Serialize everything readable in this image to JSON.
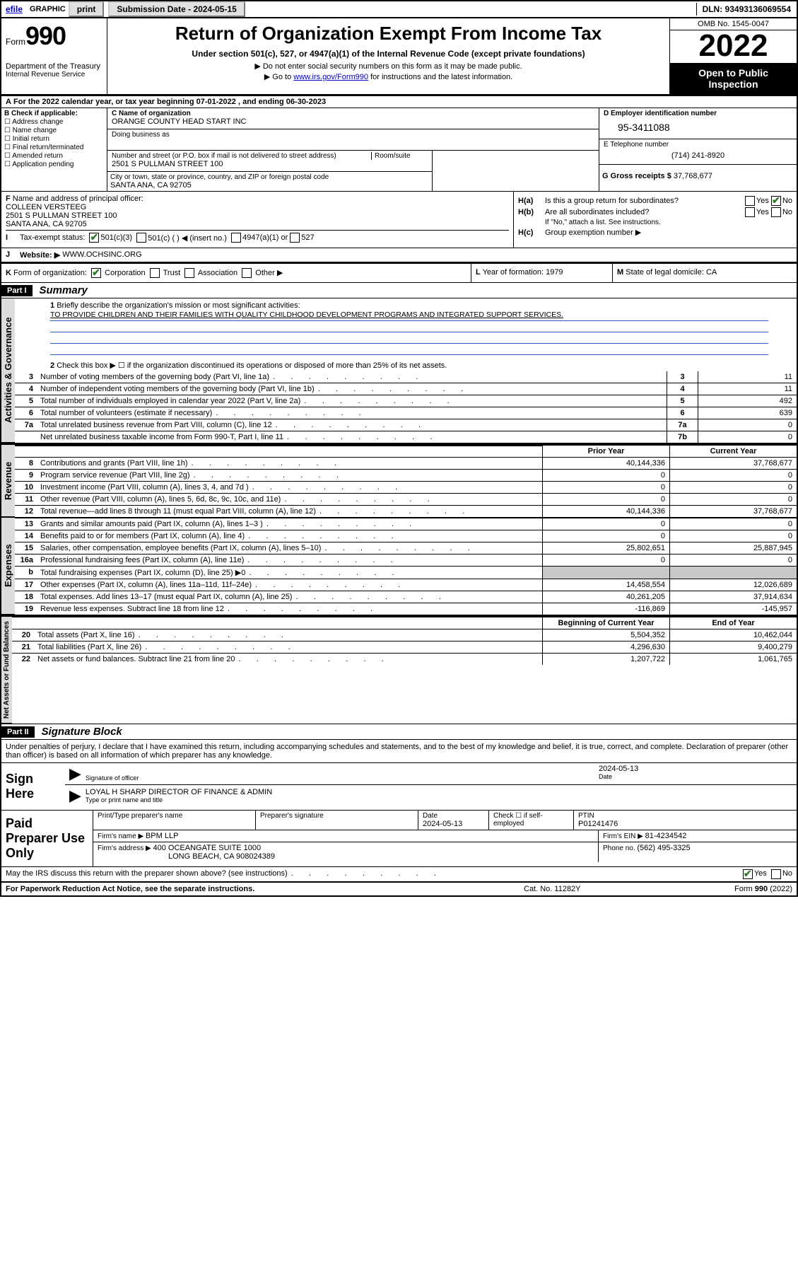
{
  "topbar": {
    "efile_link": "efile",
    "graphic": "GRAPHIC",
    "print": "print",
    "submission_label": "Submission Date - 2024-05-15",
    "dln": "DLN: 93493136069554"
  },
  "header": {
    "form_word": "Form",
    "form_number": "990",
    "dept": "Department of the Treasury",
    "irs": "Internal Revenue Service",
    "title": "Return of Organization Exempt From Income Tax",
    "sub1": "Under section 501(c), 527, or 4947(a)(1) of the Internal Revenue Code (except private foundations)",
    "note1": "▶ Do not enter social security numbers on this form as it may be made public.",
    "note2_pre": "▶ Go to ",
    "note2_link": "www.irs.gov/Form990",
    "note2_post": " for instructions and the latest information.",
    "omb": "OMB No. 1545-0047",
    "year": "2022",
    "open1": "Open to Public",
    "open2": "Inspection"
  },
  "lineA": {
    "label": "A",
    "text": "For the 2022 calendar year, or tax year beginning ",
    "begin": "07-01-2022",
    "mid": " , and ending ",
    "end": "06-30-2023"
  },
  "colB": {
    "label": "B Check if applicable:",
    "opts": [
      "Address change",
      "Name change",
      "Initial return",
      "Final return/terminated",
      "Amended return",
      "Application pending"
    ]
  },
  "colC": {
    "name_label": "C Name of organization",
    "name": "ORANGE COUNTY HEAD START INC",
    "dba_label": "Doing business as",
    "dba": "",
    "street_label": "Number and street (or P.O. box if mail is not delivered to street address)",
    "room_label": "Room/suite",
    "street": "2501 S PULLMAN STREET 100",
    "city_label": "City or town, state or province, country, and ZIP or foreign postal code",
    "city": "SANTA ANA, CA  92705"
  },
  "colD": {
    "ein_label": "D Employer identification number",
    "ein": "95-3411088",
    "phone_label": "E Telephone number",
    "phone": "(714) 241-8920",
    "gross_label": "G Gross receipts $ ",
    "gross": "37,768,677"
  },
  "rowF": {
    "label": "F",
    "text": "Name and address of principal officer:",
    "name": "COLLEEN VERSTEEG",
    "addr1": "2501 S PULLMAN STREET 100",
    "addr2": "SANTA ANA, CA  92705"
  },
  "rowH": {
    "ha_label": "H(a)",
    "ha_text": "Is this a group return for subordinates?",
    "hb_label": "H(b)",
    "hb_text": "Are all subordinates included?",
    "hb_note": "If \"No,\" attach a list. See instructions.",
    "hc_label": "H(c)",
    "hc_text": "Group exemption number ▶",
    "yes": "Yes",
    "no": "No"
  },
  "rowI": {
    "label": "I",
    "text": "Tax-exempt status:",
    "o1": "501(c)(3)",
    "o2": "501(c) (   ) ◀ (insert no.)",
    "o3": "4947(a)(1) or",
    "o4": "527"
  },
  "rowJ": {
    "label": "J",
    "text": "Website: ▶",
    "val": "WWW.OCHSINC.ORG"
  },
  "rowK": {
    "label": "K",
    "text": "Form of organization:",
    "o1": "Corporation",
    "o2": "Trust",
    "o3": "Association",
    "o4": "Other ▶",
    "l_label": "L",
    "l_text": "Year of formation: ",
    "l_val": "1979",
    "m_label": "M",
    "m_text": "State of legal domicile: ",
    "m_val": "CA"
  },
  "partI": {
    "part": "Part I",
    "title": "Summary",
    "line1_n": "1",
    "line1": "Briefly describe the organization's mission or most significant activities:",
    "mission": "TO PROVIDE CHILDREN AND THEIR FAMILIES WITH QUALITY CHILDHOOD DEVELOPMENT PROGRAMS AND INTEGRATED SUPPORT SERVICES.",
    "line2_n": "2",
    "line2": "Check this box ▶ ☐ if the organization discontinued its operations or disposed of more than 25% of its net assets.",
    "lines_gov": [
      {
        "n": "3",
        "txt": "Number of voting members of the governing body (Part VI, line 1a)",
        "box": "3",
        "val": "11"
      },
      {
        "n": "4",
        "txt": "Number of independent voting members of the governing body (Part VI, line 1b)",
        "box": "4",
        "val": "11"
      },
      {
        "n": "5",
        "txt": "Total number of individuals employed in calendar year 2022 (Part V, line 2a)",
        "box": "5",
        "val": "492"
      },
      {
        "n": "6",
        "txt": "Total number of volunteers (estimate if necessary)",
        "box": "6",
        "val": "639"
      },
      {
        "n": "7a",
        "txt": "Total unrelated business revenue from Part VIII, column (C), line 12",
        "box": "7a",
        "val": "0"
      },
      {
        "n": "",
        "txt": "Net unrelated business taxable income from Form 990-T, Part I, line 11",
        "box": "7b",
        "val": "0"
      }
    ],
    "vtab_gov": "Activities & Governance",
    "vtab_rev": "Revenue",
    "vtab_exp": "Expenses",
    "vtab_net": "Net Assets or Fund Balances",
    "col_prior": "Prior Year",
    "col_curr": "Current Year",
    "col_beg": "Beginning of Current Year",
    "col_end": "End of Year",
    "rev": [
      {
        "n": "8",
        "txt": "Contributions and grants (Part VIII, line 1h)",
        "p": "40,144,336",
        "c": "37,768,677"
      },
      {
        "n": "9",
        "txt": "Program service revenue (Part VIII, line 2g)",
        "p": "0",
        "c": "0"
      },
      {
        "n": "10",
        "txt": "Investment income (Part VIII, column (A), lines 3, 4, and 7d )",
        "p": "0",
        "c": "0"
      },
      {
        "n": "11",
        "txt": "Other revenue (Part VIII, column (A), lines 5, 6d, 8c, 9c, 10c, and 11e)",
        "p": "0",
        "c": "0"
      },
      {
        "n": "12",
        "txt": "Total revenue—add lines 8 through 11 (must equal Part VIII, column (A), line 12)",
        "p": "40,144,336",
        "c": "37,768,677"
      }
    ],
    "exp": [
      {
        "n": "13",
        "txt": "Grants and similar amounts paid (Part IX, column (A), lines 1–3 )",
        "p": "0",
        "c": "0"
      },
      {
        "n": "14",
        "txt": "Benefits paid to or for members (Part IX, column (A), line 4)",
        "p": "0",
        "c": "0"
      },
      {
        "n": "15",
        "txt": "Salaries, other compensation, employee benefits (Part IX, column (A), lines 5–10)",
        "p": "25,802,651",
        "c": "25,887,945"
      },
      {
        "n": "16a",
        "txt": "Professional fundraising fees (Part IX, column (A), line 11e)",
        "p": "0",
        "c": "0"
      },
      {
        "n": "b",
        "txt": "Total fundraising expenses (Part IX, column (D), line 25) ▶0",
        "p": "",
        "c": "",
        "shade": true
      },
      {
        "n": "17",
        "txt": "Other expenses (Part IX, column (A), lines 11a–11d, 11f–24e)",
        "p": "14,458,554",
        "c": "12,026,689"
      },
      {
        "n": "18",
        "txt": "Total expenses. Add lines 13–17 (must equal Part IX, column (A), line 25)",
        "p": "40,261,205",
        "c": "37,914,634"
      },
      {
        "n": "19",
        "txt": "Revenue less expenses. Subtract line 18 from line 12",
        "p": "-116,869",
        "c": "-145,957"
      }
    ],
    "net": [
      {
        "n": "20",
        "txt": "Total assets (Part X, line 16)",
        "p": "5,504,352",
        "c": "10,462,044"
      },
      {
        "n": "21",
        "txt": "Total liabilities (Part X, line 26)",
        "p": "4,296,630",
        "c": "9,400,279"
      },
      {
        "n": "22",
        "txt": "Net assets or fund balances. Subtract line 21 from line 20",
        "p": "1,207,722",
        "c": "1,061,765"
      }
    ]
  },
  "partII": {
    "part": "Part II",
    "title": "Signature Block",
    "decl": "Under penalties of perjury, I declare that I have examined this return, including accompanying schedules and statements, and to the best of my knowledge and belief, it is true, correct, and complete. Declaration of preparer (other than officer) is based on all information of which preparer has any knowledge.",
    "sign_here": "Sign Here",
    "sig_date": "2024-05-13",
    "sig_officer_label": "Signature of officer",
    "date_label": "Date",
    "sig_name": "LOYAL H SHARP  DIRECTOR OF FINANCE & ADMIN",
    "sig_name_label": "Type or print name and title",
    "paid": "Paid Preparer Use Only",
    "prep_name_label": "Print/Type preparer's name",
    "prep_sig_label": "Preparer's signature",
    "prep_date_label": "Date",
    "prep_date": "2024-05-13",
    "prep_check": "Check ☐ if self-employed",
    "ptin_label": "PTIN",
    "ptin": "P01241476",
    "firm_name_label": "Firm's name    ▶ ",
    "firm_name": "BPM LLP",
    "firm_ein_label": "Firm's EIN ▶ ",
    "firm_ein": "81-4234542",
    "firm_addr_label": "Firm's address ▶ ",
    "firm_addr1": "400 OCEANGATE SUITE 1000",
    "firm_addr2": "LONG BEACH, CA  908024389",
    "firm_phone_label": "Phone no. ",
    "firm_phone": "(562) 495-3325",
    "may": "May the IRS discuss this return with the preparer shown above? (see instructions)",
    "yes": "Yes",
    "no": "No"
  },
  "footer": {
    "left": "For Paperwork Reduction Act Notice, see the separate instructions.",
    "mid": "Cat. No. 11282Y",
    "right_pre": "Form ",
    "right_num": "990",
    "right_post": " (2022)"
  }
}
